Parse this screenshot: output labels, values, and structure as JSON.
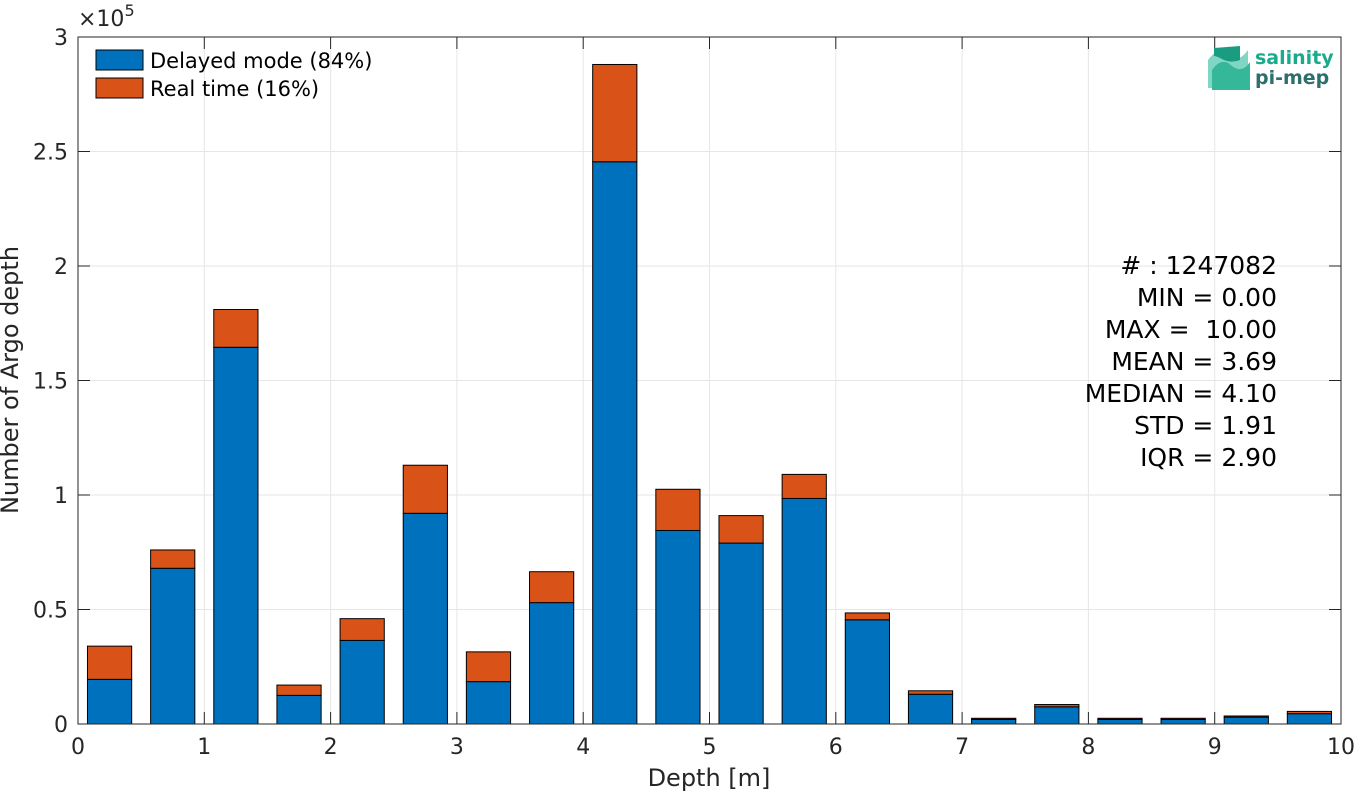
{
  "chart_data": {
    "type": "bar",
    "stacked": true,
    "xlabel": "Depth [m]",
    "ylabel": "Number of Argo depth",
    "y_exponent_label": "×10",
    "y_exponent": "5",
    "xlim": [
      0,
      10
    ],
    "ylim": [
      0,
      300000
    ],
    "x_ticks": [
      "0",
      "1",
      "2",
      "3",
      "4",
      "5",
      "6",
      "7",
      "8",
      "9",
      "10"
    ],
    "y_ticks": [
      "0",
      "0.5",
      "1",
      "1.5",
      "2",
      "2.5",
      "3"
    ],
    "grid": true,
    "legend_position": "top-left",
    "bin_width": 0.5,
    "x": [
      0.25,
      0.75,
      1.25,
      1.75,
      2.25,
      2.75,
      3.25,
      3.75,
      4.25,
      4.75,
      5.25,
      5.75,
      6.25,
      6.75,
      7.25,
      7.75,
      8.25,
      8.75,
      9.25,
      9.75
    ],
    "series": [
      {
        "name": "Delayed mode (84%)",
        "color": "#0072BD",
        "values": [
          19500,
          68000,
          164500,
          12500,
          36500,
          92000,
          18500,
          53000,
          245500,
          84500,
          79000,
          98500,
          45500,
          13000,
          2000,
          7500,
          2000,
          2000,
          3000,
          4500
        ]
      },
      {
        "name": "Real time (16%)",
        "color": "#D95319",
        "values": [
          14500,
          8000,
          16500,
          4500,
          9500,
          21000,
          13000,
          13500,
          42500,
          18000,
          12000,
          10500,
          3000,
          1500,
          500,
          1000,
          500,
          500,
          500,
          1000
        ]
      }
    ],
    "stats": [
      "# : 1247082",
      "MIN = 0.00",
      "MAX =  10.00",
      "MEAN = 3.69",
      "MEDIAN = 4.10",
      "STD = 1.91",
      "IQR = 2.90"
    ]
  },
  "logo": {
    "line1": "salinity",
    "line2": "pi-mep",
    "color1": "#1aaa8c",
    "color2": "#2f6f6a"
  }
}
